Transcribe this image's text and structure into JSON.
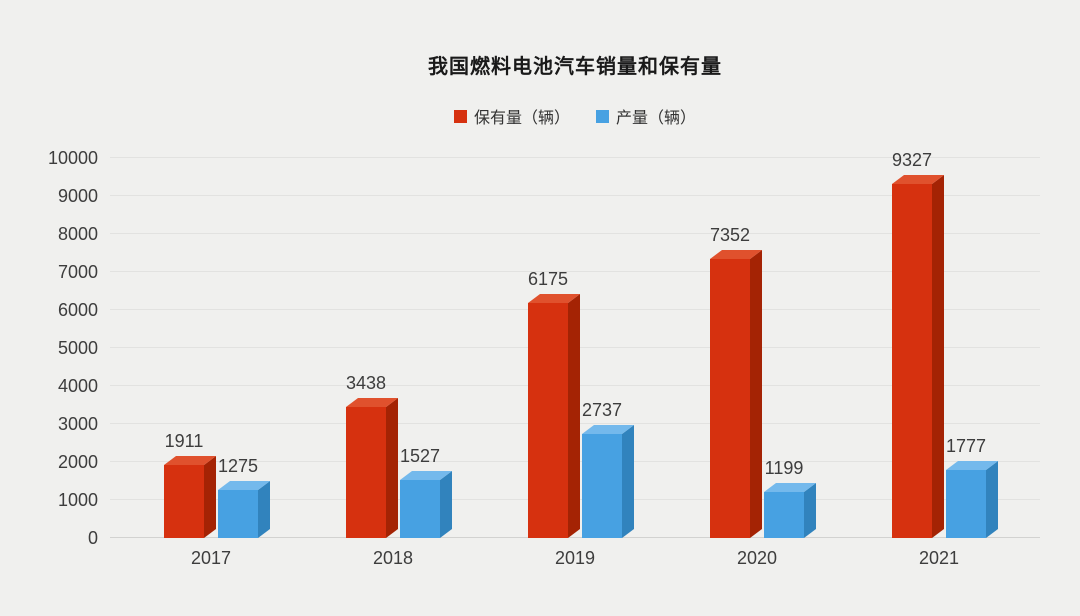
{
  "title": "我国燃料电池汽车销量和保有量",
  "legend": [
    {
      "label": "保有量（辆）",
      "color": "#d6310f"
    },
    {
      "label": "产量（辆）",
      "color": "#47a1e2"
    }
  ],
  "colors": {
    "background": "#f0f0ee",
    "gridline": "#e2e2e0",
    "axis_line": "#d2d2d0",
    "text": "#3d3d3d",
    "title_text": "#1a1a1a"
  },
  "chart_data": {
    "type": "bar",
    "title": "我国燃料电池汽车销量和保有量",
    "categories": [
      "2017",
      "2018",
      "2019",
      "2020",
      "2021"
    ],
    "series": [
      {
        "key": "holdings",
        "name": "保有量（辆）",
        "values": [
          1911,
          3438,
          6175,
          7352,
          9327
        ],
        "color": "#d6310f",
        "color_top": "#e0512d",
        "color_side": "#a42304"
      },
      {
        "key": "production",
        "name": "产量（辆）",
        "values": [
          1275,
          1527,
          2737,
          1199,
          1777
        ],
        "color": "#47a1e2",
        "color_top": "#74b9ec",
        "color_side": "#3183bd"
      }
    ],
    "xlabel": "",
    "ylabel": "",
    "ylim": [
      0,
      10000
    ],
    "ytick_step": 1000,
    "yticks": [
      0,
      1000,
      2000,
      3000,
      4000,
      5000,
      6000,
      7000,
      8000,
      9000,
      10000
    ],
    "grid": true,
    "legend_position": "top",
    "bar_style": "3d-oblique"
  }
}
